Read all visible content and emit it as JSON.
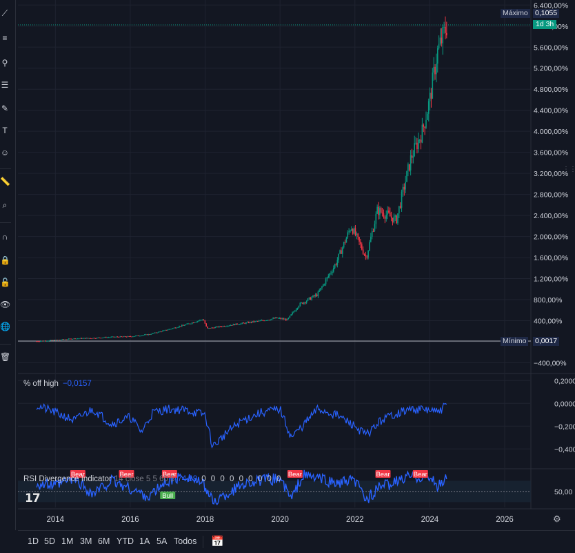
{
  "range_buttons": [
    "1D",
    "5D",
    "1M",
    "3M",
    "6M",
    "YTD",
    "1A",
    "5A",
    "Todos"
  ],
  "markers": {
    "max_label": "Máximo",
    "max_value": "0,1055",
    "min_label": "Mínimo",
    "min_value": "0,0017",
    "time_badge": "1d 3h"
  },
  "indicators": {
    "off_high": {
      "title": "% off high",
      "value": "−0,0157"
    },
    "rsi": {
      "title": "RSI Divergence Indicator",
      "params": "14 close 5 5 60 5",
      "value": "74,19",
      "zeros": "0 0 0 0 0 0 0 0 0"
    }
  },
  "chart_data": [
    {
      "type": "line",
      "title": "",
      "x": [
        2013.5,
        2014,
        2014.5,
        2015,
        2015.5,
        2016,
        2016.5,
        2017,
        2017.5,
        2017.95,
        2018.05,
        2018.5,
        2019,
        2019.5,
        2019.9,
        2020.2,
        2020.5,
        2021,
        2021.5,
        2021.9,
        2022.1,
        2022.3,
        2022.6,
        2022.9,
        2023.1,
        2023.5,
        2023.8,
        2024.0,
        2024.2,
        2024.45
      ],
      "y": [
        10,
        30,
        60,
        70,
        90,
        100,
        140,
        230,
        330,
        430,
        250,
        300,
        350,
        400,
        450,
        420,
        700,
        900,
        1500,
        2200,
        1900,
        1600,
        2500,
        2400,
        2300,
        3500,
        4000,
        4600,
        5500,
        6000
      ],
      "xlim": [
        2013,
        2026.7
      ],
      "ylim": [
        -600,
        6500
      ],
      "yticks": [
        "6.400,00%",
        "6.000,00%",
        "5.600,00%",
        "5.200,00%",
        "4.800,00%",
        "4.400,00%",
        "4.000,00%",
        "3.600,00%",
        "3.200,00%",
        "2.800,00%",
        "2.400,00%",
        "2.000,00%",
        "1.600,00%",
        "1.200,00%",
        "800,00%",
        "400,00%",
        "0,00%",
        "−400,00%"
      ],
      "ytick_values": [
        6400,
        6000,
        5600,
        5200,
        4800,
        4400,
        4000,
        3600,
        3200,
        2800,
        2400,
        2000,
        1600,
        1200,
        800,
        400,
        0,
        -400
      ],
      "xticks": [
        "2014",
        "2016",
        "2018",
        "2020",
        "2022",
        "2024",
        "2026"
      ],
      "xtick_values": [
        2014,
        2016,
        2018,
        2020,
        2022,
        2024,
        2026
      ]
    },
    {
      "type": "line",
      "title": "% off high",
      "x": [
        2013.5,
        2014,
        2014.5,
        2015,
        2015.5,
        2016,
        2016.3,
        2016.6,
        2017,
        2017.5,
        2018,
        2018.2,
        2018.6,
        2019,
        2019.5,
        2020,
        2020.3,
        2020.6,
        2021,
        2021.5,
        2022,
        2022.3,
        2022.7,
        2023,
        2023.5,
        2024,
        2024.2,
        2024.45
      ],
      "y": [
        -0.02,
        -0.08,
        -0.15,
        -0.05,
        -0.18,
        -0.12,
        -0.25,
        -0.08,
        -0.05,
        -0.06,
        -0.1,
        -0.38,
        -0.25,
        -0.15,
        -0.08,
        -0.05,
        -0.3,
        -0.2,
        -0.05,
        -0.1,
        -0.2,
        -0.28,
        -0.15,
        -0.1,
        -0.05,
        -0.06,
        -0.08,
        -0.0157
      ],
      "ylim": [
        -0.55,
        0.22
      ],
      "yticks": [
        "0,2000",
        "0,0000",
        "−0,2000",
        "−0,4000"
      ],
      "ytick_values": [
        0.2,
        0,
        -0.2,
        -0.4
      ]
    },
    {
      "type": "line",
      "title": "RSI Divergence Indicator",
      "x": [
        2013.5,
        2014,
        2014.5,
        2015,
        2015.5,
        2016,
        2016.5,
        2017,
        2017.5,
        2018,
        2018.2,
        2018.6,
        2019,
        2019.5,
        2020,
        2020.3,
        2020.6,
        2021,
        2021.5,
        2022,
        2022.3,
        2022.7,
        2023,
        2023.5,
        2024,
        2024.2,
        2024.45
      ],
      "y": [
        65,
        60,
        75,
        45,
        70,
        55,
        40,
        70,
        80,
        60,
        30,
        45,
        65,
        70,
        75,
        35,
        80,
        75,
        65,
        70,
        35,
        60,
        65,
        80,
        75,
        60,
        74.19
      ],
      "ylim": [
        20,
        90
      ],
      "yticks": [
        "50,00"
      ],
      "ytick_values": [
        50
      ],
      "annotations": [
        {
          "text": "Bear",
          "x": 2014.6
        },
        {
          "text": "Bear",
          "x": 2015.9
        },
        {
          "text": "Bear",
          "x": 2017.05
        },
        {
          "text": "Bull",
          "x": 2017.0
        },
        {
          "text": "Bear",
          "x": 2020.4
        },
        {
          "text": "Bear",
          "x": 2022.75
        },
        {
          "text": "Bear",
          "x": 2023.75
        }
      ]
    }
  ],
  "colors": {
    "up": "#089981",
    "down": "#f23645",
    "line": "#2962ff",
    "grid": "#1f2330",
    "text": "#d1d4dc",
    "bg": "#131722"
  }
}
